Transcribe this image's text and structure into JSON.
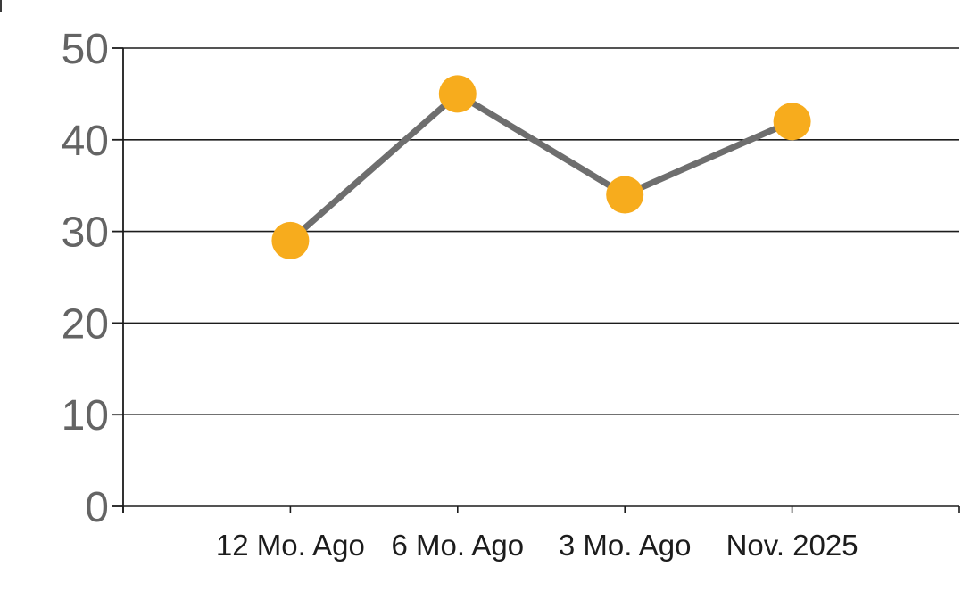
{
  "chart_data": {
    "type": "line",
    "title": "",
    "categories": [
      "12 Mo. Ago",
      "6 Mo. Ago",
      "3 Mo. Ago",
      "Nov. 2025"
    ],
    "values": [
      29,
      45,
      34,
      42
    ],
    "xlabel": "",
    "ylabel": "",
    "ylim": [
      0,
      50
    ],
    "ytick_step": 10,
    "ytick_labels": [
      "0",
      "10",
      "20",
      "30",
      "40",
      "50"
    ],
    "grid": "horizontal",
    "legend_position": "none",
    "marker_shape": "circle",
    "marker_color": "#F7AC1D",
    "line_color": "#6E6E6E",
    "grid_color": "#1C1C1C",
    "axis_color": "#1C1C1C",
    "ylabel_color": "#646464",
    "xlabel_color": "#1C1C1C",
    "background": "#FFFFFF"
  }
}
